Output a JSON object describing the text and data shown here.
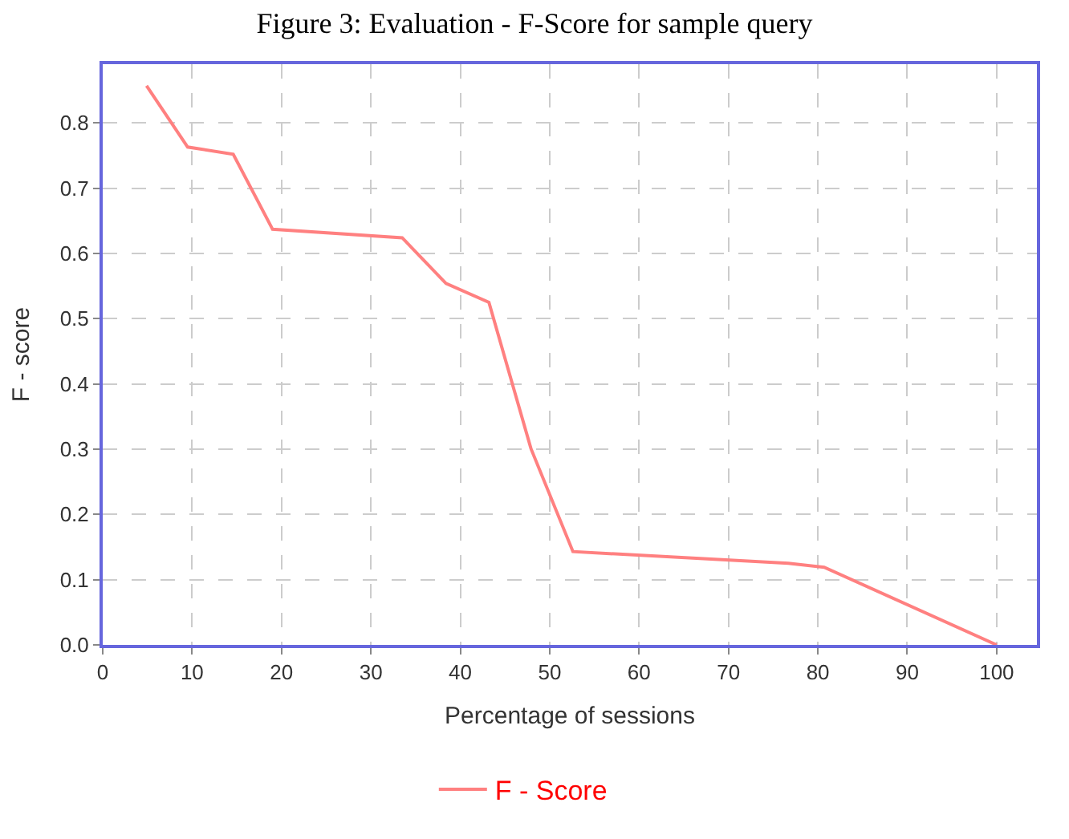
{
  "chart_data": {
    "type": "line",
    "title": "Figure 3: Evaluation - F-Score for sample query",
    "xlabel": "Percentage of sessions",
    "ylabel": "F - score",
    "x": [
      4.9,
      9.5,
      14.6,
      19.0,
      33.5,
      38.4,
      43.2,
      47.9,
      52.6,
      76.7,
      80.7,
      100
    ],
    "series": [
      {
        "name": "F - Score",
        "color": "#ff8080",
        "values": [
          0.857,
          0.763,
          0.752,
          0.637,
          0.624,
          0.554,
          0.525,
          0.301,
          0.143,
          0.125,
          0.119,
          0.0
        ]
      }
    ],
    "xlim": [
      0,
      104.5
    ],
    "ylim": [
      0,
      0.89
    ],
    "xticks": [
      0,
      10,
      20,
      30,
      40,
      50,
      60,
      70,
      80,
      90,
      100
    ],
    "yticks": [
      {
        "value": 0,
        "label": "0.0"
      },
      0.1,
      0.2,
      0.3,
      0.4,
      0.5,
      0.6,
      0.7,
      0.8
    ],
    "grid": true,
    "legend": "bottom",
    "marker": "none",
    "line_style": "solid"
  }
}
